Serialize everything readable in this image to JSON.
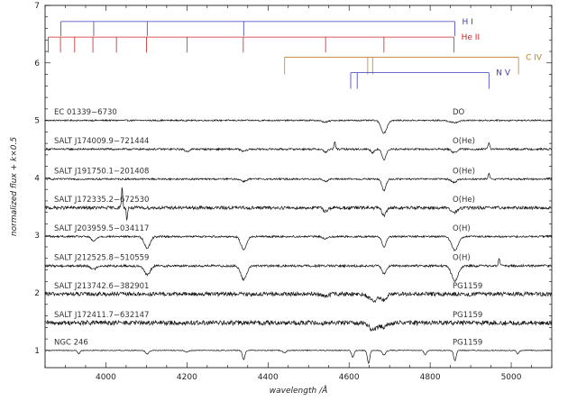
{
  "chart_data": {
    "type": "line",
    "xlabel": "wavelength /Å",
    "ylabel": "normalized flux + k×0.5",
    "xlim": [
      3850,
      5100
    ],
    "ylim": [
      0.7,
      7.0
    ],
    "x_ticks": [
      4000,
      4200,
      4400,
      4600,
      4800,
      5000
    ],
    "y_ticks": [
      1,
      2,
      3,
      4,
      5,
      6,
      7
    ],
    "grid": false,
    "line_ids": [
      {
        "label": "H I",
        "color": "#3b3bbf",
        "bar_y": 6.72,
        "tick_y": 6.47,
        "wavelengths": [
          3889,
          3970,
          4102,
          4340,
          4861
        ]
      },
      {
        "label": "He II",
        "color": "#cc2222",
        "bar_y": 6.45,
        "tick_y": 6.18,
        "wavelengths": [
          3858,
          3888,
          3923,
          3968,
          4026,
          4100,
          4200,
          4339,
          4542,
          4686,
          4859
        ]
      },
      {
        "label": "C IV",
        "color": "#c08030",
        "bar_y": 6.1,
        "tick_y": 5.8,
        "wavelengths": [
          4441,
          4646,
          4658,
          5018
        ]
      },
      {
        "label": "N V",
        "color": "#3b3bbf",
        "bar_y": 5.83,
        "tick_y": 5.55,
        "wavelengths": [
          4604,
          4620,
          4945
        ]
      }
    ],
    "series": [
      {
        "name": "EC 01339−6730",
        "class": "DO",
        "offset": 5.0,
        "noise": 0.012,
        "lines": [
          [
            4686,
            0.22,
            7
          ],
          [
            4859,
            0.04,
            10
          ],
          [
            4541,
            0.03,
            8
          ]
        ]
      },
      {
        "name": "SALT J174009.9−721444",
        "class": "O(He)",
        "offset": 4.5,
        "noise": 0.016,
        "lines": [
          [
            4686,
            0.18,
            5
          ],
          [
            4658,
            0.06,
            4
          ],
          [
            4859,
            0.06,
            6
          ],
          [
            4542,
            0.05,
            5
          ],
          [
            4200,
            0.04,
            5
          ],
          [
            4340,
            0.04,
            6
          ],
          [
            4565,
            -0.12,
            2
          ],
          [
            4945,
            -0.12,
            2
          ]
        ]
      },
      {
        "name": "SALT J191750.1−201408",
        "class": "O(He)",
        "offset": 3.98,
        "noise": 0.015,
        "lines": [
          [
            4686,
            0.2,
            5
          ],
          [
            4542,
            0.04,
            5
          ],
          [
            4859,
            0.06,
            6
          ],
          [
            4340,
            0.04,
            6
          ],
          [
            4945,
            -0.1,
            2
          ]
        ]
      },
      {
        "name": "SALT J172335.2−672530",
        "class": "O(He)",
        "offset": 3.48,
        "noise": 0.028,
        "lines": [
          [
            4686,
            0.14,
            5
          ],
          [
            4859,
            0.08,
            8
          ],
          [
            4542,
            0.06,
            5
          ],
          [
            4040,
            -0.35,
            1.5
          ],
          [
            4052,
            0.2,
            1.5
          ]
        ]
      },
      {
        "name": "SALT J203959.5−034117",
        "class": "O(H)",
        "offset": 2.98,
        "noise": 0.016,
        "lines": [
          [
            4102,
            0.2,
            7
          ],
          [
            4340,
            0.22,
            7
          ],
          [
            4861,
            0.24,
            8
          ],
          [
            4686,
            0.18,
            5
          ],
          [
            3970,
            0.08,
            6
          ],
          [
            4542,
            0.04,
            6
          ]
        ]
      },
      {
        "name": "SALT J212525.8−510559",
        "class": "O(H)",
        "offset": 2.47,
        "noise": 0.02,
        "lines": [
          [
            4340,
            0.24,
            7
          ],
          [
            4861,
            0.26,
            8
          ],
          [
            4102,
            0.16,
            7
          ],
          [
            4686,
            0.14,
            5
          ],
          [
            3970,
            0.06,
            6
          ],
          [
            4970,
            -0.15,
            1.5
          ]
        ]
      },
      {
        "name": "SALT J213742.6−382901",
        "class": "PG1159",
        "offset": 1.98,
        "noise": 0.035,
        "lines": [
          [
            4660,
            0.12,
            10
          ],
          [
            4686,
            0.1,
            6
          ],
          [
            4540,
            0.04,
            8
          ]
        ]
      },
      {
        "name": "SALT J172411.7−632147",
        "class": "PG1159",
        "offset": 1.48,
        "noise": 0.04,
        "lines": [
          [
            4660,
            0.12,
            10
          ],
          [
            4686,
            0.08,
            6
          ]
        ]
      },
      {
        "name": "NGC 246",
        "class": "PG1159",
        "offset": 1.0,
        "noise": 0.007,
        "lines": [
          [
            3933,
            0.06,
            3
          ],
          [
            4340,
            0.16,
            3
          ],
          [
            4648,
            0.22,
            3
          ],
          [
            4609,
            0.12,
            3
          ],
          [
            4686,
            0.08,
            4
          ],
          [
            4861,
            0.18,
            3
          ],
          [
            4788,
            0.08,
            3
          ],
          [
            5016,
            0.06,
            3
          ],
          [
            4102,
            0.06,
            4
          ],
          [
            4200,
            0.03,
            4
          ],
          [
            4441,
            0.04,
            4
          ]
        ]
      }
    ]
  }
}
